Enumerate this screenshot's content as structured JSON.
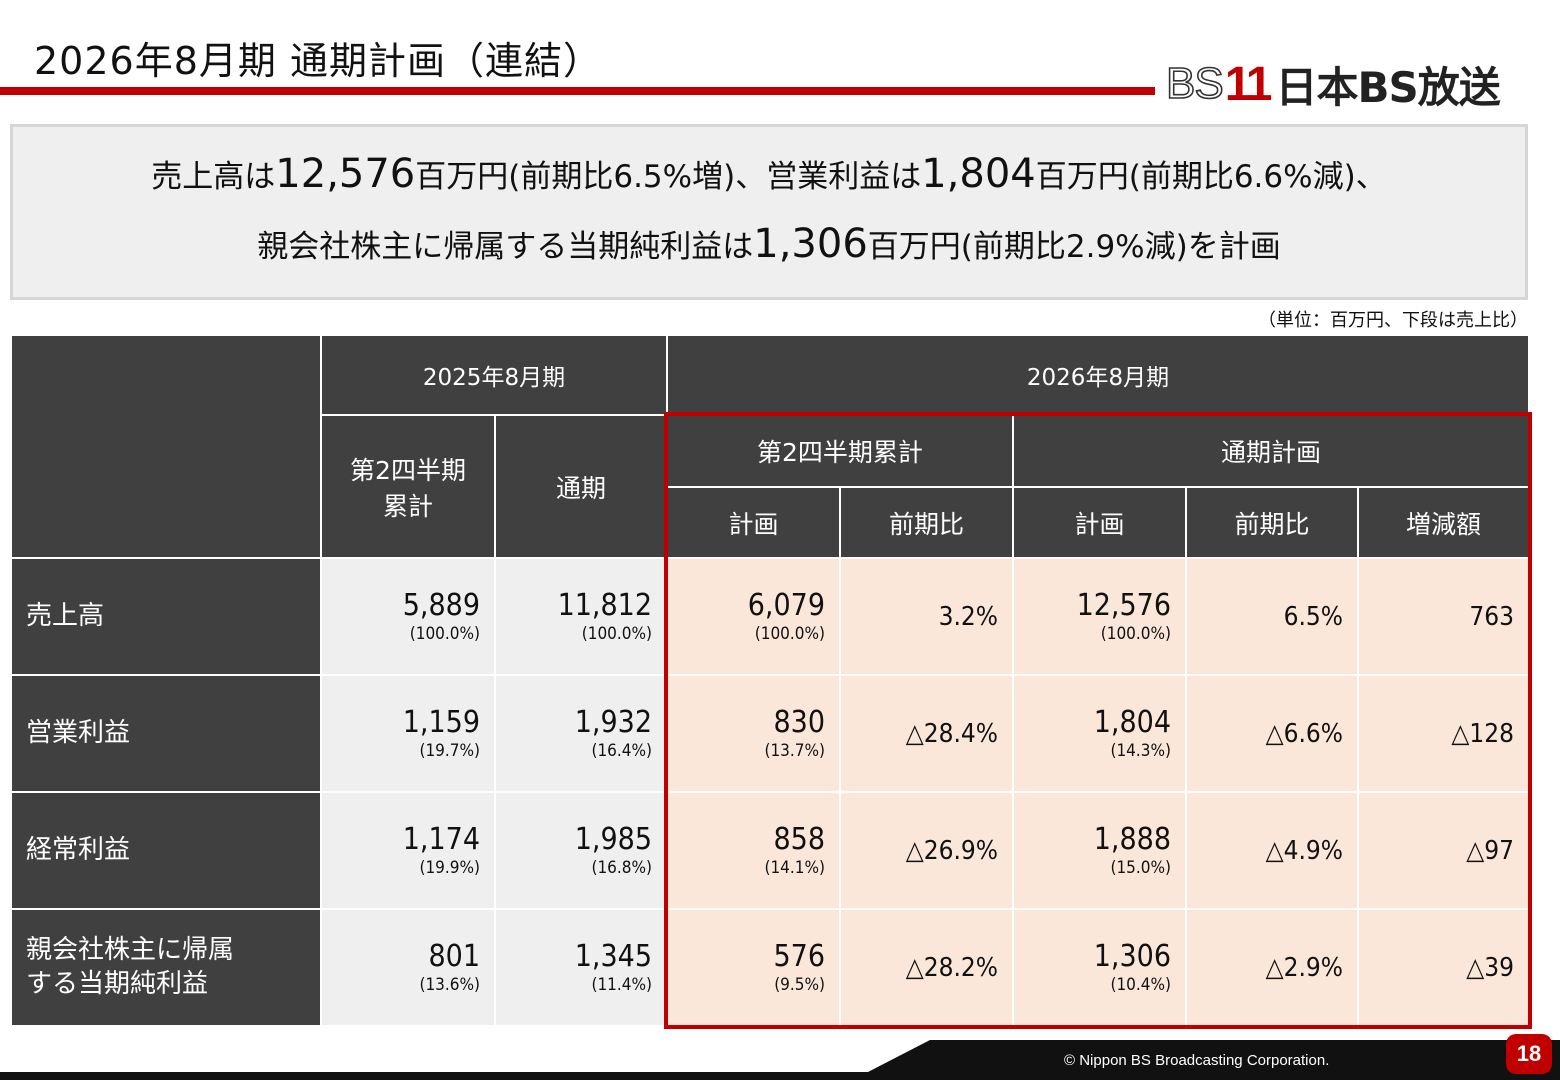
{
  "title": "2026年8月期 通期計画（連結）",
  "logo": {
    "bs": "BS",
    "eleven": "11",
    "name": "日本BS放送"
  },
  "summary": {
    "line1": [
      {
        "t": "売上高は",
        "big": false
      },
      {
        "t": "12,576",
        "big": true
      },
      {
        "t": "百万円(前期比6.5%増)、営業利益は",
        "big": false
      },
      {
        "t": "1,804",
        "big": true
      },
      {
        "t": "百万円(前期比6.6%減)、",
        "big": false
      }
    ],
    "line2": [
      {
        "t": "親会社株主に帰属する当期純利益は",
        "big": false
      },
      {
        "t": "1,306",
        "big": true
      },
      {
        "t": "百万円(前期比2.9%減)を計画",
        "big": false
      }
    ]
  },
  "unit_note": "（単位：百万円、下段は売上比）",
  "table": {
    "period_prev": "2025年8月期",
    "period_curr": "2026年8月期",
    "prev_q2": "第2四半期\n累計",
    "prev_full": "通期",
    "curr_q2": "第2四半期累計",
    "curr_full": "通期計画",
    "col_plan": "計画",
    "col_yoy": "前期比",
    "col_diff": "増減額",
    "rows": [
      {
        "label": "売上高",
        "prev_q2": {
          "v": "5,889",
          "r": "(100.0%)"
        },
        "prev_full": {
          "v": "11,812",
          "r": "(100.0%)"
        },
        "q2_plan": {
          "v": "6,079",
          "r": "(100.0%)"
        },
        "q2_yoy": "3.2%",
        "full_plan": {
          "v": "12,576",
          "r": "(100.0%)"
        },
        "full_yoy": "6.5%",
        "full_diff": "763"
      },
      {
        "label": "営業利益",
        "prev_q2": {
          "v": "1,159",
          "r": "(19.7%)"
        },
        "prev_full": {
          "v": "1,932",
          "r": "(16.4%)"
        },
        "q2_plan": {
          "v": "830",
          "r": "(13.7%)"
        },
        "q2_yoy": "△28.4%",
        "full_plan": {
          "v": "1,804",
          "r": "(14.3%)"
        },
        "full_yoy": "△6.6%",
        "full_diff": "△128"
      },
      {
        "label": "経常利益",
        "prev_q2": {
          "v": "1,174",
          "r": "(19.9%)"
        },
        "prev_full": {
          "v": "1,985",
          "r": "(16.8%)"
        },
        "q2_plan": {
          "v": "858",
          "r": "(14.1%)"
        },
        "q2_yoy": "△26.9%",
        "full_plan": {
          "v": "1,888",
          "r": "(15.0%)"
        },
        "full_yoy": "△4.9%",
        "full_diff": "△97"
      },
      {
        "label": "親会社株主に帰属\nする当期純利益",
        "prev_q2": {
          "v": "801",
          "r": "(13.6%)"
        },
        "prev_full": {
          "v": "1,345",
          "r": "(11.4%)"
        },
        "q2_plan": {
          "v": "576",
          "r": "(9.5%)"
        },
        "q2_yoy": "△28.2%",
        "full_plan": {
          "v": "1,306",
          "r": "(10.4%)"
        },
        "full_yoy": "△2.9%",
        "full_diff": "△39"
      }
    ]
  },
  "footer": {
    "copyright": "© Nippon BS Broadcasting Corporation.",
    "page": "18"
  },
  "colors": {
    "accent": "#c00000",
    "header": "#404040",
    "cell": "#efefef",
    "plan_cell": "#fbe7da"
  }
}
